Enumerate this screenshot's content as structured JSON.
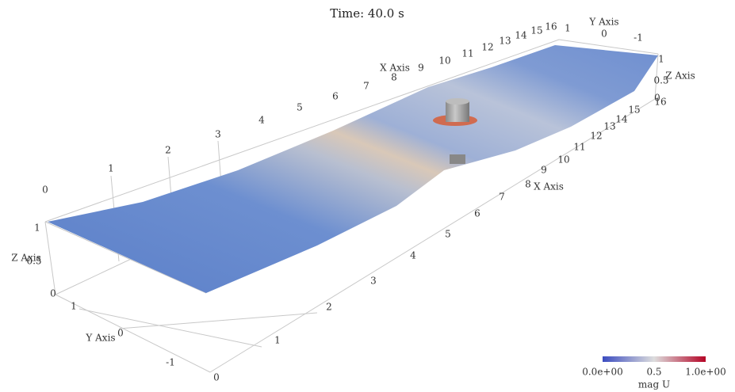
{
  "title": "Time: 40.0 s",
  "axes": {
    "x_back": {
      "label": "X Axis",
      "ticks": [
        0,
        1,
        2,
        3,
        4,
        5,
        6,
        7,
        8,
        9,
        10,
        11,
        12,
        13,
        14,
        15,
        16
      ]
    },
    "x_front": {
      "label": "X Axis",
      "ticks": [
        0,
        1,
        2,
        3,
        4,
        5,
        6,
        7,
        8,
        9,
        10,
        11,
        12,
        13,
        14,
        15,
        16
      ]
    },
    "y_top": {
      "label": "Y Axis",
      "ticks": [
        1,
        0,
        -1
      ]
    },
    "y_bottom": {
      "label": "Y Axis",
      "ticks": [
        1,
        0,
        -1
      ]
    },
    "z_right": {
      "label": "Z Axis",
      "ticks": [
        1,
        0.5,
        0
      ]
    },
    "z_left": {
      "label": "Z Axis",
      "ticks": [
        1,
        0.5,
        0
      ]
    }
  },
  "colorbar": {
    "title": "mag U",
    "labels": [
      "0.0e+00",
      "0.5",
      "1.0e+00"
    ]
  }
}
